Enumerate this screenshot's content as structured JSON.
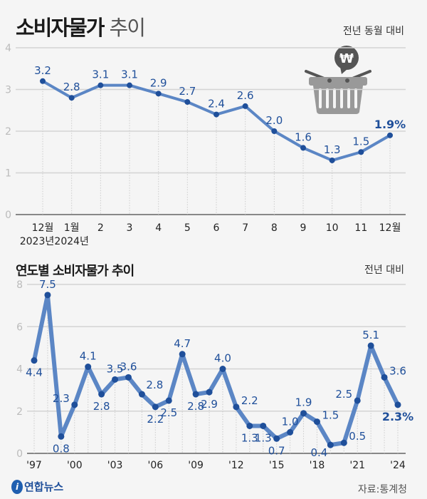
{
  "header": {
    "title_bold": "소비자물가",
    "title_light": "추이",
    "unit": "전년 동월 대비"
  },
  "section2": {
    "title": "연도별 소비자물가 추이",
    "unit": "전년 대비"
  },
  "footer": {
    "logo": "연합뉴스",
    "source": "자료:통계청"
  },
  "icon": "shopping-basket-won-icon",
  "colors": {
    "line": "#5b86c5",
    "marker": "#1f4f9a",
    "label": "#1f4f9a"
  },
  "chart_data": [
    {
      "type": "line",
      "ylim": [
        0,
        4
      ],
      "yticks": [
        "0",
        "1",
        "2",
        "3",
        "4"
      ],
      "grid": true,
      "categories": [
        "12월",
        "1월",
        "2",
        "3",
        "4",
        "5",
        "6",
        "7",
        "8",
        "9",
        "10",
        "11",
        "12월"
      ],
      "category_sublabels": [
        "2023년",
        "2024년",
        "",
        "",
        "",
        "",
        "",
        "",
        "",
        "",
        "",
        "",
        ""
      ],
      "values": [
        3.2,
        2.8,
        3.1,
        3.1,
        2.9,
        2.7,
        2.4,
        2.6,
        2.0,
        1.6,
        1.3,
        1.5,
        1.9
      ],
      "labels": [
        "3.2",
        "2.8",
        "3.1",
        "3.1",
        "2.9",
        "2.7",
        "2.4",
        "2.6",
        "2.0",
        "1.6",
        "1.3",
        "1.5",
        "1.9%"
      ]
    },
    {
      "type": "line",
      "ylim": [
        0,
        8
      ],
      "yticks": [
        "0",
        "2",
        "4",
        "6",
        "8"
      ],
      "grid": true,
      "x": [
        1997,
        1998,
        1999,
        2000,
        2001,
        2002,
        2003,
        2004,
        2005,
        2006,
        2007,
        2008,
        2009,
        2010,
        2011,
        2012,
        2013,
        2014,
        2015,
        2016,
        2017,
        2018,
        2019,
        2020,
        2021,
        2022,
        2023,
        2024
      ],
      "xticks": [
        "'97",
        "'00",
        "'03",
        "'06",
        "'09",
        "'12",
        "'15",
        "'18",
        "'21",
        "'24"
      ],
      "values": [
        4.4,
        7.5,
        0.8,
        2.3,
        4.1,
        2.8,
        3.5,
        3.6,
        2.8,
        2.2,
        2.5,
        4.7,
        2.8,
        2.9,
        4.0,
        2.2,
        1.3,
        1.3,
        0.7,
        1.0,
        1.9,
        1.5,
        0.4,
        0.5,
        2.5,
        5.1,
        3.6,
        2.3
      ],
      "labels": [
        "4.4",
        "7.5",
        "0.8",
        "2.3",
        "4.1",
        "2.8",
        "3.5",
        "3.6",
        "2.8",
        "2.2",
        "2.5",
        "4.7",
        "2.8",
        "2.9",
        "4.0",
        "2.2",
        "1.3",
        "1.3",
        "0.7",
        "1.0",
        "1.9",
        "1.5",
        "0.4",
        "0.5",
        "2.5",
        "5.1",
        "3.6",
        "2.3%"
      ]
    }
  ]
}
